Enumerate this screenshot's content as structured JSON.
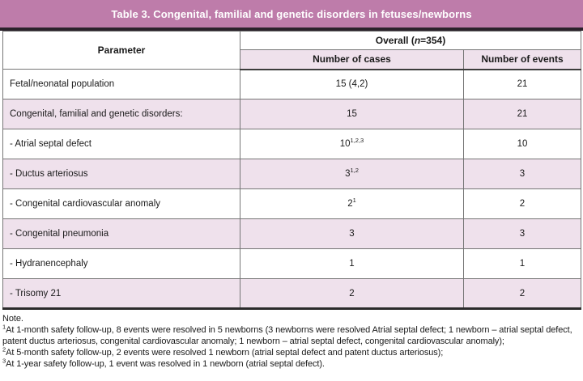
{
  "title_bar": {
    "text": "Table 3. Congenital, familial and genetic disorders in fetuses/newborns"
  },
  "table": {
    "header": {
      "parameter": "Parameter",
      "overall_prefix": "Overall (",
      "overall_n": "n",
      "overall_suffix": "=354)",
      "cases": "Number of cases",
      "events": "Number of events"
    },
    "rows": [
      {
        "label": "Fetal/neonatal population",
        "cases": "15 (4,2)",
        "cases_sup": "",
        "events": "21"
      },
      {
        "label": "Congenital, familial and genetic disorders:",
        "cases": "15",
        "cases_sup": "",
        "events": "21"
      },
      {
        "label": "- Atrial septal defect",
        "cases": "10",
        "cases_sup": "1,2,3",
        "events": "10"
      },
      {
        "label": "- Ductus arteriosus",
        "cases": "3",
        "cases_sup": "1,2",
        "events": "3"
      },
      {
        "label": "- Congenital cardiovascular anomaly",
        "cases": "2",
        "cases_sup": "1",
        "events": "2"
      },
      {
        "label": "- Congenital pneumonia",
        "cases": "3",
        "cases_sup": "",
        "events": "3"
      },
      {
        "label": "- Hydranencephaly",
        "cases": "1",
        "cases_sup": "",
        "events": "1"
      },
      {
        "label": "- Trisomy 21",
        "cases": "2",
        "cases_sup": "",
        "events": "2"
      }
    ]
  },
  "footnotes": {
    "note_label": "Note.",
    "items": [
      {
        "sup": "1",
        "text": "At 1-month safety follow-up, 8 events were resolved in 5 newborns (3 newborns were resolved Atrial septal defect; 1 newborn – atrial septal defect, patent ductus arteriosus, congenital cardiovascular anomaly; 1 newborn – atrial septal defect, congenital cardiovascular anomaly);"
      },
      {
        "sup": "2",
        "text": "At 5-month safety follow-up, 2 events were resolved 1 newborn (atrial septal defect and patent ductus arteriosus);"
      },
      {
        "sup": "3",
        "text": "At 1-year safety follow-up, 1 event was resolved in 1 newborn (atrial septal defect)."
      }
    ]
  },
  "colors": {
    "title_bar_bg": "#be7caa",
    "title_text": "#ffffff",
    "row_alt_bg": "#efe1ec",
    "subheader_bg": "#efe1ec",
    "border_dark": "#2b222b",
    "border_gray": "#767676",
    "text": "#1a1a1a"
  }
}
